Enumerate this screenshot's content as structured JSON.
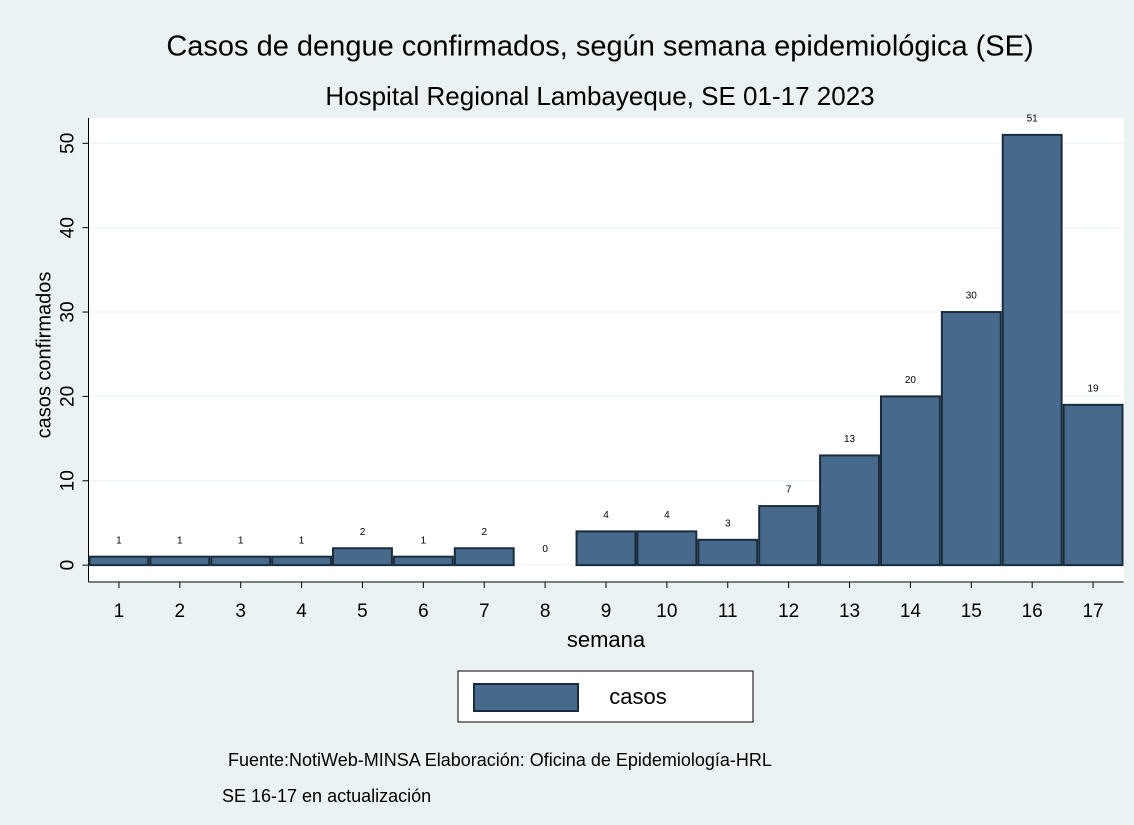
{
  "chart_data": {
    "type": "bar",
    "title": "Casos de dengue confirmados, según semana epidemiológica (SE)",
    "subtitle": "Hospital Regional Lambayeque, SE 01-17 2023",
    "x_label": "semana",
    "y_label": "casos confirmados",
    "categories": [
      1,
      2,
      3,
      4,
      5,
      6,
      7,
      8,
      9,
      10,
      11,
      12,
      13,
      14,
      15,
      16,
      17
    ],
    "series": [
      {
        "name": "casos",
        "color": "#476a8c",
        "values": [
          1,
          1,
          1,
          1,
          2,
          1,
          2,
          0,
          4,
          4,
          3,
          7,
          13,
          20,
          30,
          51,
          19
        ]
      }
    ],
    "ylim": [
      -2,
      53
    ],
    "yticks": [
      0,
      10,
      20,
      30,
      40,
      50
    ],
    "grid": true,
    "notes": [
      "Fuente:NotiWeb-MINSA Elaboración: Oficina de Epidemiología-HRL",
      "SE 16-17 en actualización"
    ]
  }
}
